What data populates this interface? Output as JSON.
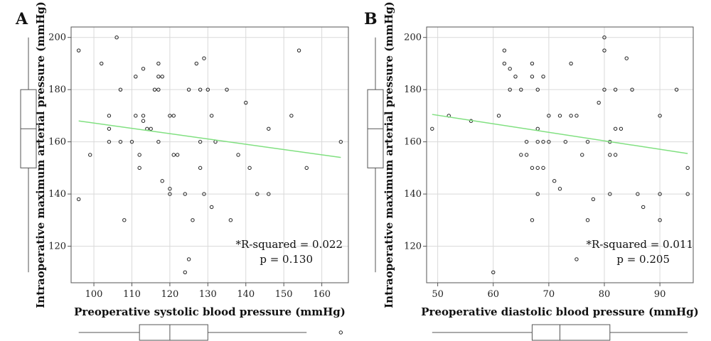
{
  "chart_data": [
    {
      "type": "scatter",
      "panel_label": "A",
      "xlabel": "Preoperative systolic blood pressure (mmHg)",
      "ylabel": "Intraoperative maximum arterial pressure (mmHg)",
      "xlim": [
        94,
        167
      ],
      "ylim": [
        106,
        204
      ],
      "xticks": [
        100,
        110,
        120,
        130,
        140,
        150,
        160
      ],
      "yticks": [
        120,
        140,
        160,
        180,
        200
      ],
      "grid": true,
      "fit_line": {
        "x": [
          96,
          165
        ],
        "y": [
          168,
          154
        ],
        "color": "#80e080"
      },
      "annotation": [
        "*R-squared = 0.022",
        "p = 0.130"
      ],
      "x_boxplot": {
        "min": 96,
        "q1": 112,
        "median": 120,
        "q3": 130,
        "max": 156,
        "outliers": [
          165
        ]
      },
      "y_boxplot": {
        "min": 110,
        "q1": 150,
        "median": 165,
        "q3": 180,
        "max": 200
      },
      "points": [
        [
          96,
          195
        ],
        [
          96,
          138
        ],
        [
          99,
          155
        ],
        [
          102,
          190
        ],
        [
          104,
          170
        ],
        [
          104,
          165
        ],
        [
          104,
          160
        ],
        [
          106,
          200
        ],
        [
          107,
          180
        ],
        [
          107,
          160
        ],
        [
          108,
          130
        ],
        [
          110,
          160
        ],
        [
          111,
          185
        ],
        [
          111,
          170
        ],
        [
          112,
          155
        ],
        [
          112,
          150
        ],
        [
          113,
          188
        ],
        [
          113,
          170
        ],
        [
          113,
          168
        ],
        [
          114,
          165
        ],
        [
          115,
          165
        ],
        [
          116,
          180
        ],
        [
          117,
          190
        ],
        [
          117,
          185
        ],
        [
          117,
          180
        ],
        [
          117,
          160
        ],
        [
          118,
          185
        ],
        [
          118,
          145
        ],
        [
          120,
          170
        ],
        [
          120,
          142
        ],
        [
          120,
          140
        ],
        [
          121,
          170
        ],
        [
          121,
          155
        ],
        [
          122,
          155
        ],
        [
          124,
          140
        ],
        [
          124,
          110
        ],
        [
          125,
          180
        ],
        [
          125,
          115
        ],
        [
          126,
          130
        ],
        [
          127,
          190
        ],
        [
          128,
          180
        ],
        [
          128,
          160
        ],
        [
          128,
          150
        ],
        [
          129,
          192
        ],
        [
          129,
          140
        ],
        [
          130,
          180
        ],
        [
          131,
          170
        ],
        [
          131,
          135
        ],
        [
          132,
          160
        ],
        [
          135,
          180
        ],
        [
          136,
          130
        ],
        [
          138,
          155
        ],
        [
          140,
          175
        ],
        [
          141,
          150
        ],
        [
          143,
          140
        ],
        [
          146,
          165
        ],
        [
          146,
          140
        ],
        [
          152,
          170
        ],
        [
          154,
          195
        ],
        [
          156,
          150
        ],
        [
          165,
          160
        ]
      ]
    },
    {
      "type": "scatter",
      "panel_label": "B",
      "xlabel": "Preoperative diastolic blood pressure (mmHg)",
      "ylabel": "Intraoperative maximum arterial pressure (mmHg)",
      "xlim": [
        48,
        96
      ],
      "ylim": [
        106,
        204
      ],
      "xticks": [
        50,
        60,
        70,
        80,
        90
      ],
      "yticks": [
        120,
        140,
        160,
        180,
        200
      ],
      "grid": true,
      "fit_line": {
        "x": [
          49,
          95
        ],
        "y": [
          170.5,
          155.5
        ],
        "color": "#80e080"
      },
      "annotation": [
        "*R-squared = 0.011",
        "p = 0.205"
      ],
      "x_boxplot": {
        "min": 49,
        "q1": 67,
        "median": 72,
        "q3": 81,
        "max": 95,
        "outliers": []
      },
      "y_boxplot": {
        "min": 110,
        "q1": 150,
        "median": 165,
        "q3": 180,
        "max": 200
      },
      "points": [
        [
          49,
          165
        ],
        [
          52,
          170
        ],
        [
          56,
          168
        ],
        [
          60,
          110
        ],
        [
          61,
          170
        ],
        [
          62,
          195
        ],
        [
          62,
          190
        ],
        [
          63,
          188
        ],
        [
          63,
          180
        ],
        [
          64,
          185
        ],
        [
          65,
          180
        ],
        [
          65,
          155
        ],
        [
          66,
          160
        ],
        [
          66,
          155
        ],
        [
          67,
          190
        ],
        [
          67,
          185
        ],
        [
          67,
          150
        ],
        [
          67,
          130
        ],
        [
          68,
          180
        ],
        [
          68,
          165
        ],
        [
          68,
          160
        ],
        [
          68,
          150
        ],
        [
          68,
          140
        ],
        [
          69,
          185
        ],
        [
          69,
          160
        ],
        [
          69,
          150
        ],
        [
          70,
          170
        ],
        [
          70,
          160
        ],
        [
          71,
          145
        ],
        [
          72,
          170
        ],
        [
          72,
          142
        ],
        [
          73,
          160
        ],
        [
          74,
          190
        ],
        [
          74,
          170
        ],
        [
          75,
          170
        ],
        [
          75,
          115
        ],
        [
          76,
          155
        ],
        [
          77,
          160
        ],
        [
          77,
          130
        ],
        [
          78,
          138
        ],
        [
          79,
          175
        ],
        [
          80,
          200
        ],
        [
          80,
          195
        ],
        [
          80,
          180
        ],
        [
          81,
          160
        ],
        [
          81,
          155
        ],
        [
          81,
          140
        ],
        [
          82,
          180
        ],
        [
          82,
          165
        ],
        [
          82,
          155
        ],
        [
          83,
          165
        ],
        [
          84,
          192
        ],
        [
          85,
          180
        ],
        [
          86,
          140
        ],
        [
          87,
          135
        ],
        [
          90,
          170
        ],
        [
          90,
          140
        ],
        [
          90,
          130
        ],
        [
          93,
          180
        ],
        [
          95,
          150
        ],
        [
          95,
          140
        ]
      ]
    }
  ]
}
